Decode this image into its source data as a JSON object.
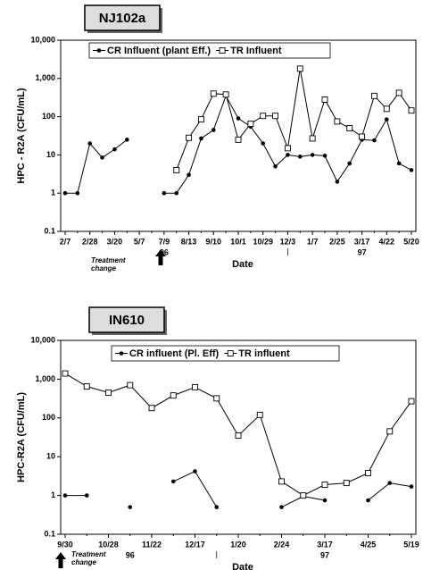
{
  "chart_data": [
    {
      "type": "line",
      "title": "NJ102a",
      "yscale": "log",
      "ylabel": "HPC - R2A (CFU/mL)",
      "xlabel": "Date",
      "ylim": [
        0.1,
        10000
      ],
      "yticks": [
        0.1,
        1,
        10,
        100,
        {
          "value": 1000,
          "label": "1,000"
        },
        {
          "value": 10000,
          "label": "10,000"
        }
      ],
      "categories": [
        "2/7",
        null,
        "2/28",
        null,
        "3/20",
        null,
        "5/7",
        null,
        "7/9",
        null,
        "8/13",
        null,
        "9/10",
        null,
        "10/1",
        null,
        "10/29",
        null,
        "12/3",
        null,
        "1/7",
        null,
        "2/25",
        null,
        "3/17",
        null,
        "4/22",
        null,
        "5/20"
      ],
      "year_labels": [
        "96",
        "97"
      ],
      "annotation": "Treatment change",
      "series": [
        {
          "name": "CR Influent (plant Eff.)",
          "color": "#000000",
          "marker": "circle",
          "values": [
            1,
            1,
            20,
            8.5,
            14,
            25,
            null,
            null,
            1,
            1,
            3,
            27,
            45,
            350,
            90,
            55,
            20,
            5,
            10,
            9,
            10,
            9.5,
            2,
            6,
            25,
            24,
            85,
            6,
            4
          ]
        },
        {
          "name": "TR Influent",
          "color": "#000000",
          "marker": "square",
          "values": [
            null,
            null,
            null,
            null,
            null,
            null,
            null,
            null,
            null,
            4,
            28,
            85,
            400,
            380,
            25,
            65,
            105,
            105,
            15,
            1800,
            27,
            280,
            75,
            50,
            30,
            350,
            160,
            420,
            145
          ]
        }
      ]
    },
    {
      "type": "line",
      "title": "IN610",
      "yscale": "log",
      "ylabel": "HPC-R2A (CFU/mL)",
      "xlabel": "Date",
      "ylim": [
        0.1,
        10000
      ],
      "yticks": [
        0.1,
        1,
        10,
        100,
        {
          "value": 1000,
          "label": "1,000"
        },
        {
          "value": 10000,
          "label": "10,000"
        }
      ],
      "categories": [
        "9/30",
        null,
        "10/28",
        null,
        "11/22",
        null,
        "12/17",
        null,
        "1/20",
        null,
        "2/24",
        null,
        "3/17",
        null,
        "4/25",
        null,
        "5/19"
      ],
      "year_labels": [
        "96",
        "97"
      ],
      "annotation": "Treatment change",
      "series": [
        {
          "name": "CR influent (Pl. Eff)",
          "color": "#000000",
          "marker": "circle",
          "values": [
            1,
            1,
            null,
            0.5,
            null,
            2.3,
            4.2,
            0.5,
            null,
            null,
            0.5,
            0.95,
            0.75,
            null,
            0.75,
            2.1,
            1.7
          ]
        },
        {
          "name": "TR influent",
          "color": "#000000",
          "marker": "square",
          "values": [
            1400,
            650,
            450,
            700,
            180,
            380,
            620,
            320,
            35,
            120,
            2.3,
            1,
            1.9,
            2.1,
            3.8,
            45,
            270
          ]
        }
      ]
    }
  ]
}
